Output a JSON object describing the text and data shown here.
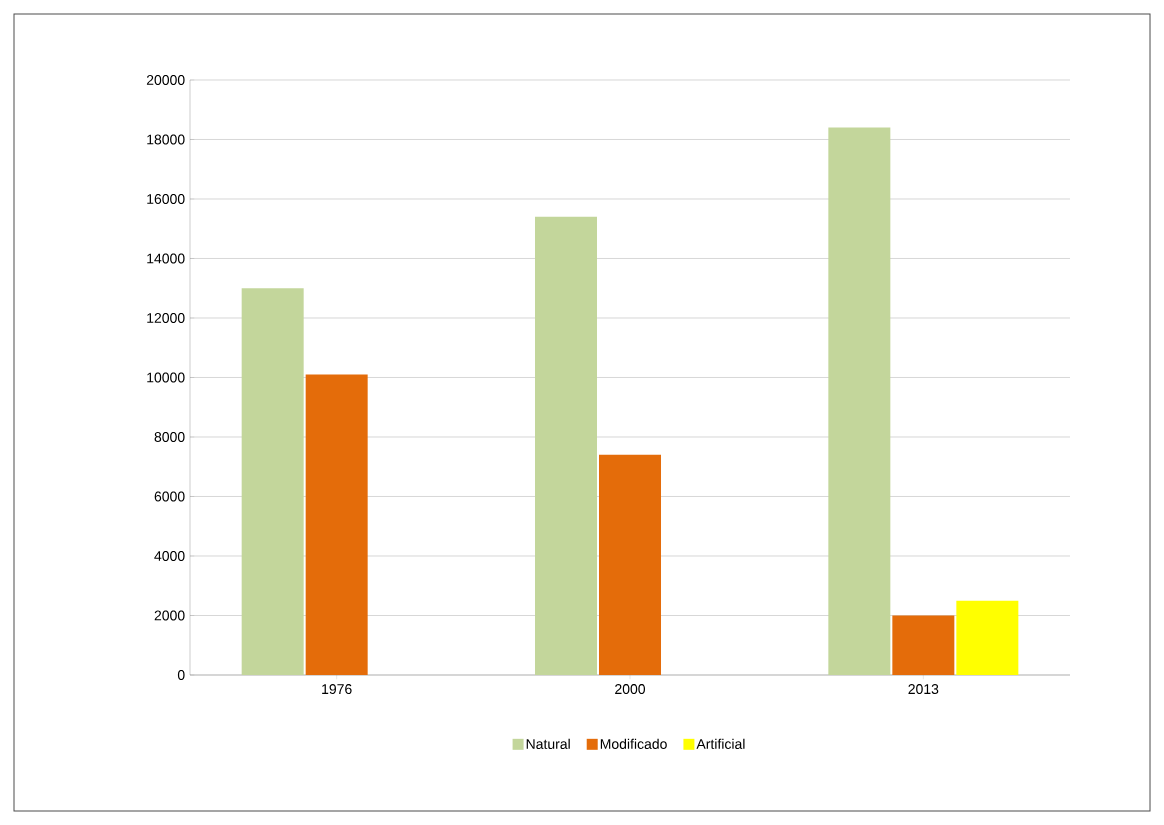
{
  "chart_data": {
    "type": "bar",
    "categories": [
      "1976",
      "2000",
      "2013"
    ],
    "series": [
      {
        "name": "Natural",
        "color": "#c3d69b",
        "values": [
          13000,
          15400,
          18400
        ]
      },
      {
        "name": "Modificado",
        "color": "#e46c0a",
        "values": [
          10100,
          7400,
          2000
        ]
      },
      {
        "name": "Artificial",
        "color": "#ffff00",
        "values": [
          0,
          0,
          2500
        ]
      }
    ],
    "ylim": [
      0,
      20000
    ],
    "yticks": [
      0,
      2000,
      4000,
      6000,
      8000,
      10000,
      12000,
      14000,
      16000,
      18000,
      20000
    ],
    "grid": "y",
    "legend": "bottom"
  }
}
